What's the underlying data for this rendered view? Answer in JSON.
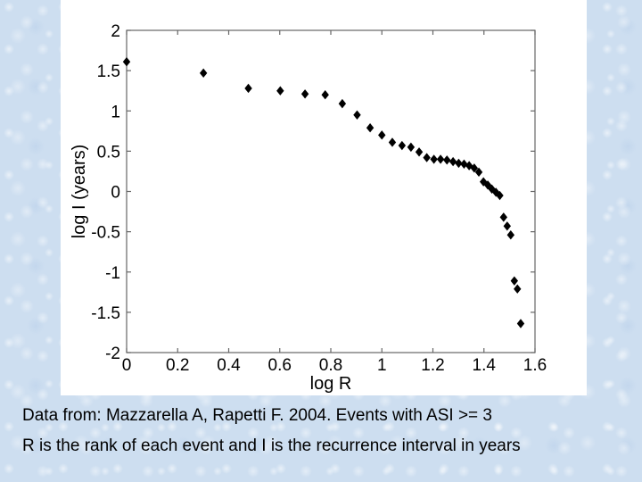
{
  "slide": {
    "background_color": "#cddef0",
    "panel_color": "#ffffff",
    "caption_line1": "Data from: Mazzarella A, Rapetti F. 2004. Events with ASI >= 3",
    "caption_line2": "R is the rank of each event and I is the recurrence interval in years"
  },
  "chart_data": {
    "type": "scatter",
    "title": "",
    "xlabel": "log R",
    "ylabel": "log I (years)",
    "xlim": [
      0,
      1.6
    ],
    "ylim": [
      -2,
      2
    ],
    "x_ticks": [
      0,
      0.2,
      0.4,
      0.6,
      0.8,
      1,
      1.2,
      1.4,
      1.6
    ],
    "x_tick_labels": [
      "0",
      "0.2",
      "0.4",
      "0.6",
      "0.8",
      "1",
      "1.2",
      "1.4",
      "1.6"
    ],
    "y_ticks": [
      2,
      1.5,
      1,
      0.5,
      0,
      -0.5,
      -1,
      -1.5,
      -2
    ],
    "y_tick_labels": [
      "2",
      "1.5",
      "1",
      "0.5",
      "0",
      "-0.5",
      "-1",
      "-1.5",
      "-2"
    ],
    "grid": false,
    "box": true,
    "legend": "none",
    "marker": "diamond",
    "marker_color": "#000000",
    "axis_color": "#666666",
    "points": [
      [
        0.0,
        1.61
      ],
      [
        0.301,
        1.47
      ],
      [
        0.477,
        1.28
      ],
      [
        0.602,
        1.25
      ],
      [
        0.699,
        1.21
      ],
      [
        0.778,
        1.2
      ],
      [
        0.845,
        1.09
      ],
      [
        0.903,
        0.95
      ],
      [
        0.954,
        0.79
      ],
      [
        1.0,
        0.7
      ],
      [
        1.041,
        0.61
      ],
      [
        1.079,
        0.57
      ],
      [
        1.114,
        0.55
      ],
      [
        1.146,
        0.49
      ],
      [
        1.176,
        0.42
      ],
      [
        1.204,
        0.4
      ],
      [
        1.23,
        0.4
      ],
      [
        1.255,
        0.39
      ],
      [
        1.279,
        0.37
      ],
      [
        1.301,
        0.35
      ],
      [
        1.322,
        0.34
      ],
      [
        1.342,
        0.32
      ],
      [
        1.362,
        0.29
      ],
      [
        1.38,
        0.24
      ],
      [
        1.398,
        0.12
      ],
      [
        1.415,
        0.08
      ],
      [
        1.431,
        0.03
      ],
      [
        1.447,
        -0.01
      ],
      [
        1.462,
        -0.05
      ],
      [
        1.477,
        -0.32
      ],
      [
        1.491,
        -0.43
      ],
      [
        1.505,
        -0.54
      ],
      [
        1.519,
        -1.11
      ],
      [
        1.531,
        -1.21
      ],
      [
        1.544,
        -1.64
      ]
    ]
  }
}
